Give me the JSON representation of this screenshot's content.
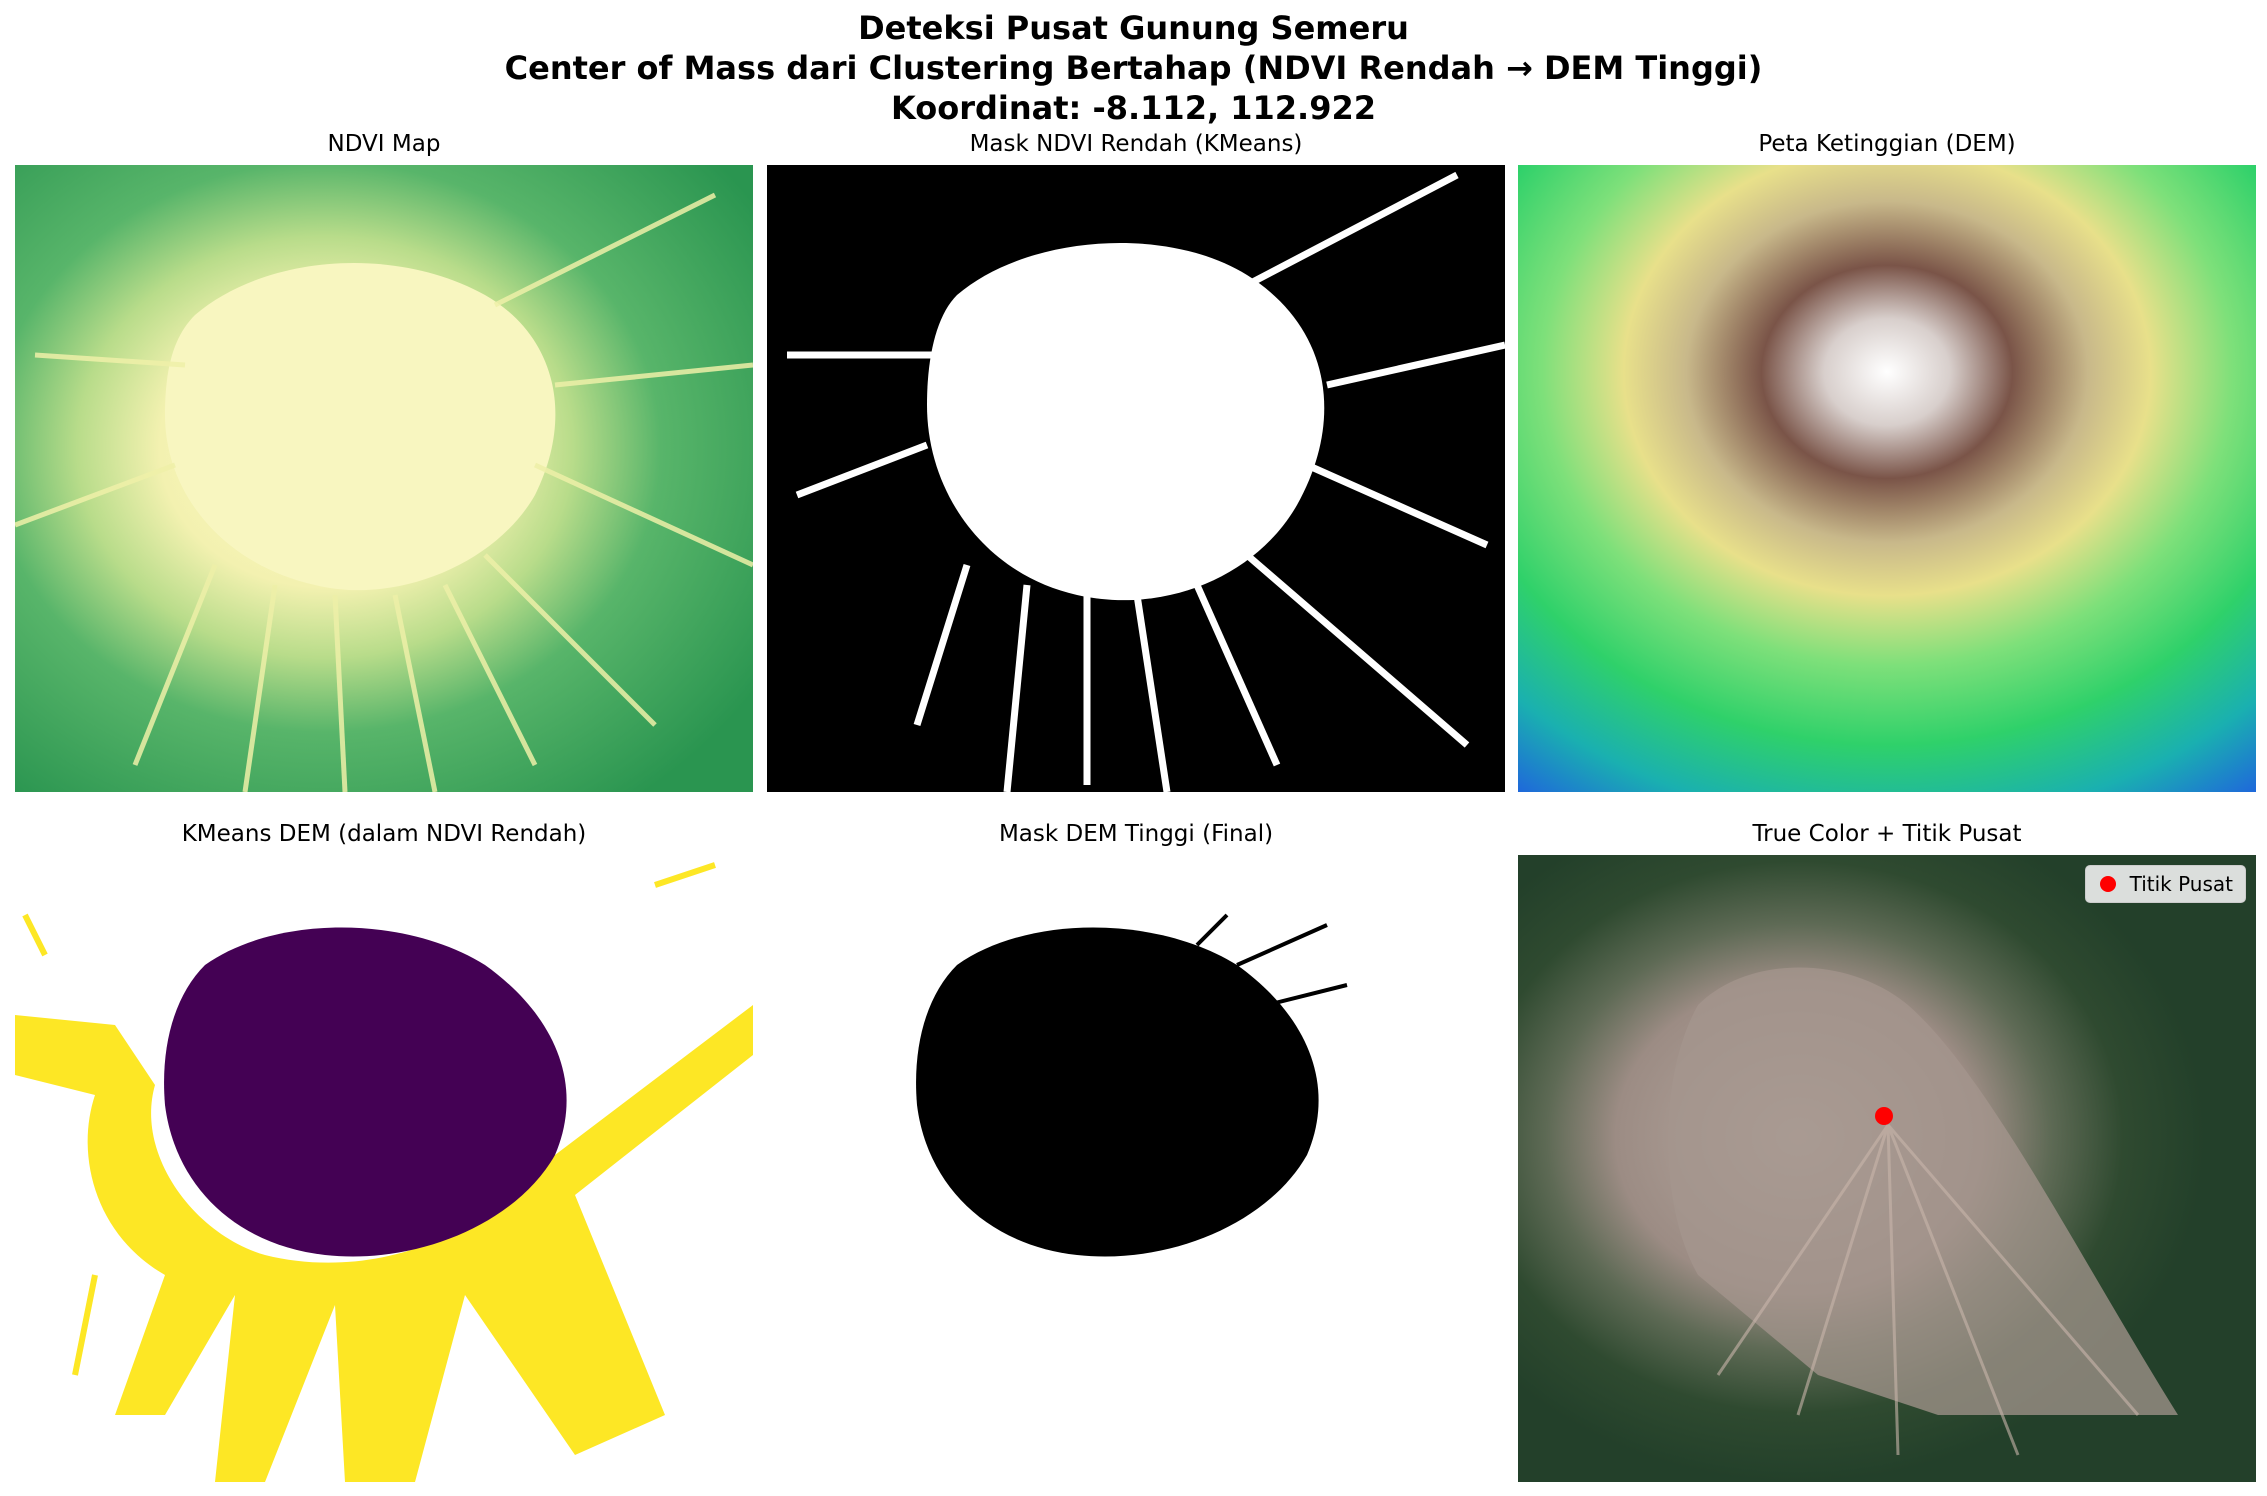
{
  "figure": {
    "title_line1": "Deteksi Pusat Gunung Semeru",
    "title_line2": "Center of Mass dari Clustering Bertahap (NDVI Rendah → DEM Tinggi)",
    "title_line3": "Koordinat: -8.112, 112.922"
  },
  "panels": {
    "ndvi": {
      "title": "NDVI Map"
    },
    "mask_ndvi": {
      "title": "Mask NDVI Rendah (KMeans)"
    },
    "dem": {
      "title": "Peta Ketinggian (DEM)"
    },
    "kmeans_dem": {
      "title": "KMeans DEM (dalam NDVI Rendah)"
    },
    "mask_dem": {
      "title": "Mask DEM Tinggi (Final)"
    },
    "truecolor": {
      "title": "True Color + Titik Pusat",
      "legend_label": "Titik Pusat"
    }
  },
  "colors": {
    "ndvi_low": "#f7f5b8",
    "ndvi_high": "#2e9f56",
    "dem_low": "#1f6fe0",
    "dem_mid": "#2fd16a",
    "dem_yellow": "#e8e08a",
    "dem_brown": "#7a5448",
    "dem_peak": "#ffffff",
    "kmeans_dark": "#440154",
    "kmeans_yellow": "#fde725",
    "center_marker": "#ff0000"
  }
}
